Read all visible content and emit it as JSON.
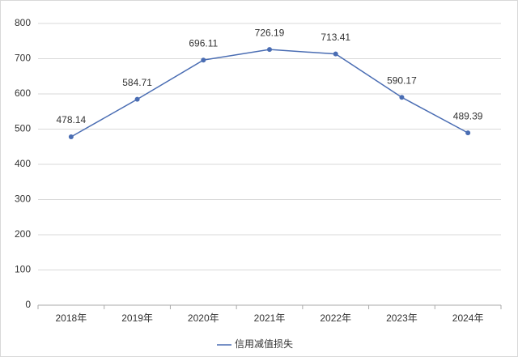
{
  "chart_data": {
    "type": "line",
    "categories": [
      "2018年",
      "2019年",
      "2020年",
      "2021年",
      "2022年",
      "2023年",
      "2024年"
    ],
    "series": [
      {
        "name": "信用减值损失",
        "color": "#4a6db3",
        "values": [
          478.14,
          584.71,
          696.11,
          726.19,
          713.41,
          590.17,
          489.39
        ]
      }
    ],
    "ylim": [
      0,
      800
    ],
    "yticks": [
      0,
      100,
      200,
      300,
      400,
      500,
      600,
      700,
      800
    ],
    "grid": true,
    "legend": "bottom"
  }
}
